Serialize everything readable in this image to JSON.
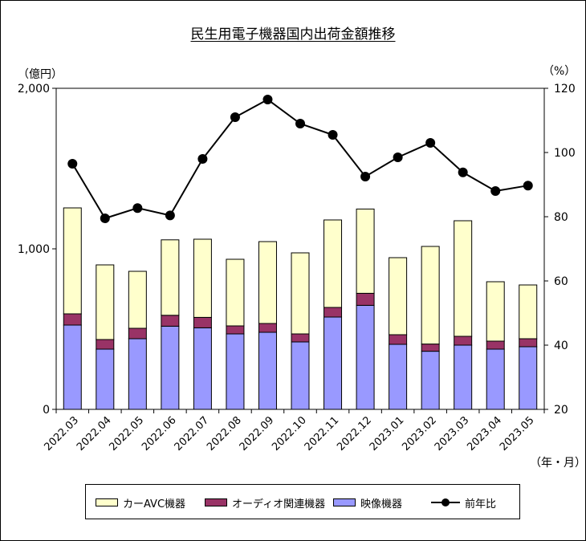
{
  "chart_data": {
    "type": "bar",
    "stacked": true,
    "title": "民生用電子機器国内出荷金額推移",
    "left_unit": "（億円）",
    "right_unit": "（%）",
    "x_unit": "（年・月）",
    "categories": [
      "2022.03",
      "2022.04",
      "2022.05",
      "2022.06",
      "2022.07",
      "2022.08",
      "2022.09",
      "2022.10",
      "2022.11",
      "2022.12",
      "2023.01",
      "2023.02",
      "2023.03",
      "2023.04",
      "2023.05"
    ],
    "series": [
      {
        "name": "映像機器",
        "color": "#9999ff",
        "values": [
          525,
          375,
          440,
          518,
          508,
          470,
          480,
          420,
          575,
          648,
          405,
          362,
          400,
          375,
          390
        ]
      },
      {
        "name": "オーディオ関連機器",
        "color": "#993366",
        "values": [
          70,
          60,
          65,
          68,
          65,
          50,
          55,
          50,
          60,
          75,
          60,
          45,
          55,
          50,
          50
        ]
      },
      {
        "name": "カーAVC機器",
        "color": "#ffffcc",
        "values": [
          660,
          465,
          355,
          470,
          487,
          415,
          510,
          505,
          545,
          525,
          480,
          608,
          720,
          370,
          335
        ]
      }
    ],
    "line": {
      "name": "前年比",
      "color": "#000000",
      "values": [
        96.5,
        79.5,
        82.7,
        80.4,
        98,
        111,
        116.5,
        109,
        105.5,
        92.5,
        98.5,
        103,
        93.8,
        88,
        89.7
      ]
    },
    "y_left": {
      "min": 0,
      "max": 2000,
      "ticks": [
        "0",
        "1,000",
        "2,000"
      ]
    },
    "y_right": {
      "min": 20,
      "max": 120,
      "ticks": [
        "20",
        "40",
        "60",
        "80",
        "100",
        "120"
      ]
    },
    "legend": {
      "placement": "bottom",
      "items": [
        {
          "label": "カーAVC機器",
          "color": "#ffffcc"
        },
        {
          "label": "オーディオ関連機器",
          "color": "#993366"
        },
        {
          "label": "映像機器",
          "color": "#9999ff"
        },
        {
          "label": "前年比",
          "color": "#000000"
        }
      ]
    },
    "grid": false
  }
}
